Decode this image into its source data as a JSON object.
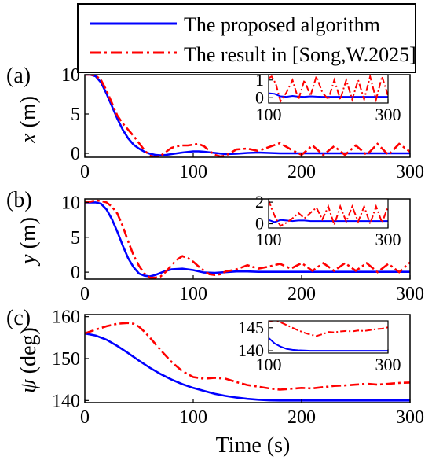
{
  "colors": {
    "proposed": "#0000ff",
    "song": "#ff0000",
    "axis": "#000000"
  },
  "legend": {
    "entries": [
      {
        "label": "The proposed algorithm",
        "color": "#0000ff",
        "style": "solid"
      },
      {
        "label": "The result in [Song,W.2025]",
        "color": "#ff0000",
        "style": "dashdot"
      }
    ]
  },
  "xlabel": "Time  (s)",
  "chart_data": [
    {
      "type": "line",
      "panel_label": "(a)",
      "ylabel_var": "x",
      "ylabel_unit": " (m)",
      "xlim": [
        0,
        300
      ],
      "ylim": [
        -0.5,
        10
      ],
      "xticks": [
        0,
        100,
        200,
        300
      ],
      "yticks": [
        0,
        5,
        10
      ],
      "series": [
        {
          "name": "The proposed algorithm",
          "color": "#0000ff",
          "style": "solid",
          "x": [
            0,
            5,
            10,
            15,
            20,
            25,
            30,
            35,
            40,
            45,
            50,
            55,
            60,
            65,
            70,
            75,
            80,
            90,
            100,
            105,
            110,
            120,
            130,
            140,
            150,
            160,
            170,
            180,
            190,
            200,
            210,
            220,
            230,
            240,
            250,
            260,
            270,
            280,
            290,
            300
          ],
          "y": [
            10,
            10,
            9.8,
            9.0,
            7.6,
            6.0,
            4.4,
            3.0,
            1.9,
            1.1,
            0.6,
            0.2,
            -0.05,
            -0.2,
            -0.25,
            -0.2,
            -0.1,
            0.1,
            0.25,
            0.25,
            0.2,
            0.05,
            -0.1,
            -0.05,
            0.05,
            0.1,
            0.05,
            0,
            0,
            0,
            0,
            0,
            0,
            0,
            0,
            0,
            0,
            0,
            0,
            0
          ]
        },
        {
          "name": "The result in [Song,W.2025]",
          "color": "#ff0000",
          "style": "dashdot",
          "x": [
            0,
            5,
            10,
            15,
            20,
            25,
            30,
            35,
            40,
            45,
            50,
            55,
            60,
            65,
            70,
            75,
            80,
            85,
            90,
            95,
            100,
            105,
            110,
            115,
            120,
            125,
            130,
            140,
            150,
            160,
            170,
            180,
            190,
            200,
            210,
            220,
            230,
            240,
            250,
            260,
            270,
            280,
            290,
            300
          ],
          "y": [
            10,
            10,
            9.9,
            9.3,
            8.0,
            6.4,
            4.8,
            3.8,
            3.0,
            2.2,
            1.3,
            0.4,
            -0.3,
            -0.5,
            -0.3,
            0.2,
            0.7,
            0.9,
            1.0,
            1.0,
            1.1,
            1.2,
            0.9,
            0.3,
            -0.2,
            -0.4,
            -0.3,
            0.5,
            0.6,
            0.3,
            0.8,
            1.3,
            0.5,
            -0.2,
            1.0,
            -0.2,
            0.9,
            -0.2,
            1.0,
            -0.2,
            1.2,
            -0.2,
            1.2,
            0.2
          ]
        }
      ],
      "inset": {
        "xlim": [
          100,
          300
        ],
        "ylim": [
          -0.3,
          1.3
        ],
        "xticks": [
          100,
          300
        ],
        "yticks": [
          0,
          1
        ],
        "series": [
          {
            "name": "The proposed algorithm",
            "color": "#0000ff",
            "style": "solid",
            "x": [
              100,
              110,
              120,
              130,
              140,
              150,
              160,
              170,
              180,
              190,
              200,
              220,
              240,
              260,
              280,
              300
            ],
            "y": [
              0.25,
              0.22,
              0.08,
              0.05,
              0.1,
              0.06,
              0.05,
              0.08,
              0.06,
              0.05,
              0.05,
              0.05,
              0.05,
              0.05,
              0.05,
              0.05
            ]
          },
          {
            "name": "The result in [Song,W.2025]",
            "color": "#ff0000",
            "style": "dashdot",
            "x": [
              100,
              105,
              112,
              120,
              130,
              140,
              150,
              160,
              170,
              180,
              190,
              200,
              210,
              220,
              230,
              240,
              250,
              260,
              270,
              280,
              290,
              300
            ],
            "y": [
              1.1,
              1.2,
              0.8,
              -0.2,
              0.3,
              1.0,
              -0.1,
              1.0,
              0.1,
              1.2,
              0.3,
              -0.1,
              1.0,
              -0.1,
              1.0,
              -0.1,
              1.0,
              -0.1,
              1.2,
              -0.1,
              1.2,
              0.1
            ]
          }
        ]
      }
    },
    {
      "type": "line",
      "panel_label": "(b)",
      "ylabel_var": "y",
      "ylabel_unit": " (m)",
      "xlim": [
        0,
        300
      ],
      "ylim": [
        -1,
        10.5
      ],
      "xticks": [
        0,
        100,
        200,
        300
      ],
      "yticks": [
        0,
        5,
        10
      ],
      "series": [
        {
          "name": "The proposed algorithm",
          "color": "#0000ff",
          "style": "solid",
          "x": [
            0,
            5,
            10,
            15,
            20,
            25,
            30,
            35,
            40,
            45,
            50,
            55,
            60,
            65,
            70,
            75,
            80,
            90,
            100,
            110,
            120,
            130,
            140,
            150,
            160,
            170,
            180,
            200,
            220,
            240,
            260,
            280,
            300
          ],
          "y": [
            10,
            10,
            10,
            9.8,
            9.0,
            7.6,
            5.8,
            3.8,
            2.0,
            0.7,
            -0.2,
            -0.5,
            -0.6,
            -0.4,
            -0.1,
            0.2,
            0.4,
            0.5,
            0.3,
            -0.05,
            -0.1,
            0,
            0.1,
            0.1,
            0.05,
            0.05,
            0.05,
            0.05,
            0.05,
            0.05,
            0.05,
            0.05,
            0.05
          ]
        },
        {
          "name": "The result in [Song,W.2025]",
          "color": "#ff0000",
          "style": "dashdot",
          "x": [
            0,
            5,
            10,
            15,
            20,
            25,
            30,
            35,
            40,
            45,
            50,
            55,
            60,
            65,
            70,
            75,
            80,
            85,
            90,
            95,
            100,
            105,
            110,
            115,
            120,
            125,
            130,
            140,
            150,
            160,
            170,
            180,
            190,
            200,
            210,
            220,
            230,
            240,
            250,
            260,
            270,
            280,
            290,
            300
          ],
          "y": [
            10,
            10.1,
            10.3,
            10.2,
            10,
            9.4,
            8.4,
            6.6,
            4.4,
            2.4,
            0.9,
            -0.2,
            -0.8,
            -0.8,
            -0.6,
            0.1,
            1.0,
            1.8,
            2.3,
            2.0,
            1.5,
            0.8,
            0.2,
            -0.3,
            -0.4,
            -0.3,
            0.1,
            0.4,
            1.0,
            0.5,
            0.8,
            1.2,
            0.5,
            1.3,
            0.2,
            1.3,
            0.2,
            1.3,
            0.2,
            1.3,
            0.0,
            1.2,
            0.0,
            1.4
          ]
        }
      ],
      "inset": {
        "xlim": [
          100,
          300
        ],
        "ylim": [
          -0.4,
          2.3
        ],
        "xticks": [
          100,
          300
        ],
        "yticks": [
          0,
          2
        ],
        "series": [
          {
            "name": "The proposed algorithm",
            "color": "#0000ff",
            "style": "solid",
            "x": [
              100,
              110,
              120,
              130,
              140,
              150,
              160,
              170,
              180,
              200,
              220,
              240,
              260,
              280,
              300
            ],
            "y": [
              0.35,
              0.15,
              0.35,
              0.3,
              0.25,
              0.3,
              0.3,
              0.25,
              0.25,
              0.25,
              0.25,
              0.25,
              0.25,
              0.25,
              0.25
            ]
          },
          {
            "name": "The result in [Song,W.2025]",
            "color": "#ff0000",
            "style": "dashdot",
            "x": [
              100,
              105,
              112,
              120,
              130,
              140,
              150,
              160,
              170,
              180,
              190,
              200,
              210,
              220,
              230,
              240,
              250,
              260,
              270,
              280,
              290,
              300
            ],
            "y": [
              2.2,
              1.4,
              0.5,
              -0.2,
              0.1,
              0.5,
              1.0,
              0.5,
              1.0,
              1.5,
              0.4,
              1.6,
              -0.1,
              1.6,
              0.2,
              1.6,
              0.2,
              1.6,
              0.0,
              1.6,
              0.1,
              1.6
            ]
          }
        ]
      }
    },
    {
      "type": "line",
      "panel_label": "(c)",
      "ylabel_var": "ψ",
      "ylabel_unit": " (deg)",
      "xlim": [
        0,
        300
      ],
      "ylim": [
        139.5,
        160.5
      ],
      "xticks": [
        0,
        100,
        200,
        300
      ],
      "yticks": [
        140,
        150,
        160
      ],
      "series": [
        {
          "name": "The proposed algorithm",
          "color": "#0000ff",
          "style": "solid",
          "x": [
            0,
            10,
            20,
            30,
            40,
            50,
            60,
            70,
            80,
            90,
            100,
            110,
            120,
            130,
            140,
            150,
            160,
            170,
            180,
            190,
            200,
            220,
            240,
            260,
            280,
            300
          ],
          "y": [
            156,
            155.5,
            154.5,
            153,
            151.3,
            149.5,
            147.8,
            146.3,
            145,
            143.9,
            143,
            142.3,
            141.6,
            141.1,
            140.7,
            140.4,
            140.2,
            140.05,
            140,
            140,
            140,
            140,
            140,
            140,
            140,
            140
          ]
        },
        {
          "name": "The result in [Song,W.2025]",
          "color": "#ff0000",
          "style": "dashdot",
          "x": [
            0,
            10,
            20,
            30,
            40,
            45,
            50,
            55,
            60,
            70,
            80,
            90,
            100,
            110,
            120,
            130,
            140,
            150,
            160,
            170,
            180,
            190,
            200,
            210,
            220,
            230,
            240,
            250,
            260,
            270,
            280,
            290,
            300
          ],
          "y": [
            156,
            156.9,
            157.7,
            158.3,
            158.5,
            158.3,
            157.6,
            156.4,
            155,
            152,
            149.2,
            147,
            145.6,
            145.2,
            145.4,
            145.2,
            144.4,
            143.7,
            143.3,
            142.9,
            142.6,
            142.8,
            143,
            142.9,
            143.2,
            143.5,
            143.6,
            143.8,
            144,
            143.8,
            144,
            144.2,
            144.3
          ]
        }
      ],
      "inset": {
        "xlim": [
          100,
          300
        ],
        "ylim": [
          139.5,
          146.5
        ],
        "xticks": [
          100,
          300
        ],
        "yticks": [
          140,
          145
        ],
        "series": [
          {
            "name": "The proposed algorithm",
            "color": "#0000ff",
            "style": "solid",
            "x": [
              100,
              110,
              120,
              130,
              140,
              150,
              160,
              170,
              180,
              200,
              220,
              240,
              260,
              280,
              300
            ],
            "y": [
              142.8,
              141.6,
              140.9,
              140.4,
              140.2,
              140.1,
              140.05,
              140,
              140,
              140,
              140,
              140,
              140,
              140,
              140
            ]
          },
          {
            "name": "The result in [Song,W.2025]",
            "color": "#ff0000",
            "style": "dashdot",
            "x": [
              100,
              110,
              120,
              130,
              140,
              150,
              160,
              170,
              180,
              190,
              200,
              210,
              220,
              230,
              240,
              250,
              260,
              270,
              280,
              290,
              300
            ],
            "y": [
              146.4,
              146.6,
              146.2,
              145.6,
              145,
              144.4,
              143.9,
              143.5,
              143.2,
              143.6,
              144.1,
              144,
              144.2,
              144.3,
              144.2,
              144.4,
              144.3,
              144.5,
              144.7,
              144.8,
              145.1
            ]
          }
        ]
      }
    }
  ]
}
